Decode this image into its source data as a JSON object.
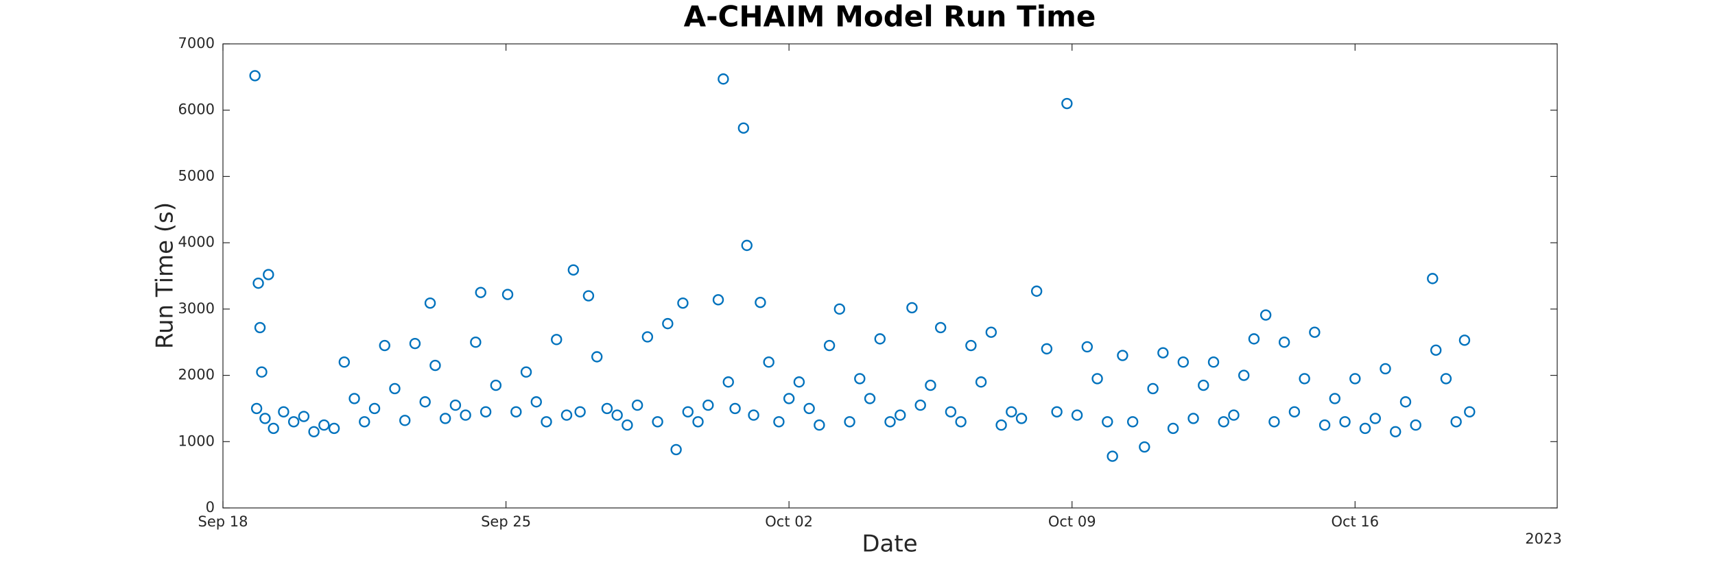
{
  "chart_data": {
    "type": "scatter",
    "title": "A-CHAIM Model Run Time",
    "x_label": "Date",
    "y_label": "Run Time (s)",
    "x_year_label": "2023",
    "color": "#0072bd",
    "xlim": [
      "2023-09-18",
      "2023-10-21"
    ],
    "xticks": [
      {
        "value": "2023-09-18",
        "label": "Sep 18"
      },
      {
        "value": "2023-09-25",
        "label": "Sep 25"
      },
      {
        "value": "2023-10-02",
        "label": "Oct 02"
      },
      {
        "value": "2023-10-09",
        "label": "Oct 09"
      },
      {
        "value": "2023-10-16",
        "label": "Oct 16"
      }
    ],
    "ylim": [
      0,
      7000
    ],
    "yticks": [
      0,
      1000,
      2000,
      3000,
      4000,
      5000,
      6000,
      7000
    ],
    "x": [
      "2023-09-18T19:00",
      "2023-09-18T20:00",
      "2023-09-18T21:00",
      "2023-09-18T22:00",
      "2023-09-18T23:00",
      "2023-09-19T01:00",
      "2023-09-19T03:00",
      "2023-09-19T06:00",
      "2023-09-19T12:00",
      "2023-09-19T18:00",
      "2023-09-20T00:00",
      "2023-09-20T06:00",
      "2023-09-20T12:00",
      "2023-09-20T18:00",
      "2023-09-21T00:00",
      "2023-09-21T06:00",
      "2023-09-21T12:00",
      "2023-09-21T18:00",
      "2023-09-22T00:00",
      "2023-09-22T06:00",
      "2023-09-22T12:00",
      "2023-09-22T18:00",
      "2023-09-23T00:00",
      "2023-09-23T03:00",
      "2023-09-23T06:00",
      "2023-09-23T12:00",
      "2023-09-23T18:00",
      "2023-09-24T00:00",
      "2023-09-24T06:00",
      "2023-09-24T09:00",
      "2023-09-24T12:00",
      "2023-09-24T18:00",
      "2023-09-25T01:00",
      "2023-09-25T06:00",
      "2023-09-25T12:00",
      "2023-09-25T18:00",
      "2023-09-26T00:00",
      "2023-09-26T06:00",
      "2023-09-26T12:00",
      "2023-09-26T16:00",
      "2023-09-26T20:00",
      "2023-09-27T01:00",
      "2023-09-27T06:00",
      "2023-09-27T12:00",
      "2023-09-27T18:00",
      "2023-09-28T00:00",
      "2023-09-28T06:00",
      "2023-09-28T12:00",
      "2023-09-28T18:00",
      "2023-09-29T00:00",
      "2023-09-29T05:00",
      "2023-09-29T09:00",
      "2023-09-29T12:00",
      "2023-09-29T18:00",
      "2023-09-30T00:00",
      "2023-09-30T06:00",
      "2023-09-30T09:00",
      "2023-09-30T12:00",
      "2023-09-30T16:00",
      "2023-09-30T21:00",
      "2023-09-30T23:00",
      "2023-10-01T03:00",
      "2023-10-01T07:00",
      "2023-10-01T12:00",
      "2023-10-01T18:00",
      "2023-10-02T00:00",
      "2023-10-02T06:00",
      "2023-10-02T12:00",
      "2023-10-02T18:00",
      "2023-10-03T00:00",
      "2023-10-03T06:00",
      "2023-10-03T12:00",
      "2023-10-03T18:00",
      "2023-10-04T00:00",
      "2023-10-04T06:00",
      "2023-10-04T12:00",
      "2023-10-04T18:00",
      "2023-10-05T01:00",
      "2023-10-05T06:00",
      "2023-10-05T12:00",
      "2023-10-05T18:00",
      "2023-10-06T00:00",
      "2023-10-06T06:00",
      "2023-10-06T12:00",
      "2023-10-06T18:00",
      "2023-10-07T00:00",
      "2023-10-07T06:00",
      "2023-10-07T12:00",
      "2023-10-07T18:00",
      "2023-10-08T03:00",
      "2023-10-08T09:00",
      "2023-10-08T15:00",
      "2023-10-08T21:00",
      "2023-10-09T03:00",
      "2023-10-09T09:00",
      "2023-10-09T15:00",
      "2023-10-09T21:00",
      "2023-10-10T00:00",
      "2023-10-10T06:00",
      "2023-10-10T12:00",
      "2023-10-10T19:00",
      "2023-10-11T00:00",
      "2023-10-11T06:00",
      "2023-10-11T12:00",
      "2023-10-11T18:00",
      "2023-10-12T00:00",
      "2023-10-12T06:00",
      "2023-10-12T12:00",
      "2023-10-12T18:00",
      "2023-10-13T00:00",
      "2023-10-13T06:00",
      "2023-10-13T12:00",
      "2023-10-13T19:00",
      "2023-10-14T00:00",
      "2023-10-14T06:00",
      "2023-10-14T12:00",
      "2023-10-14T18:00",
      "2023-10-15T00:00",
      "2023-10-15T06:00",
      "2023-10-15T12:00",
      "2023-10-15T18:00",
      "2023-10-16T00:00",
      "2023-10-16T06:00",
      "2023-10-16T12:00",
      "2023-10-16T18:00",
      "2023-10-17T00:00",
      "2023-10-17T06:00",
      "2023-10-17T12:00",
      "2023-10-17T22:00",
      "2023-10-18T00:00",
      "2023-10-18T06:00",
      "2023-10-18T12:00",
      "2023-10-18T17:00",
      "2023-10-18T20:00"
    ],
    "values": [
      6520,
      1500,
      3390,
      2720,
      2050,
      1350,
      3520,
      1200,
      1450,
      1300,
      1380,
      1150,
      1250,
      1200,
      2200,
      1650,
      1300,
      1500,
      2450,
      1800,
      1320,
      2480,
      1600,
      3090,
      2150,
      1350,
      1550,
      1400,
      2500,
      3250,
      1450,
      1850,
      3220,
      1450,
      2050,
      1600,
      1300,
      2540,
      1400,
      3590,
      1450,
      3200,
      2280,
      1500,
      1400,
      1250,
      1550,
      2580,
      1300,
      2780,
      880,
      3090,
      1450,
      1300,
      1550,
      3140,
      6470,
      1900,
      1500,
      5730,
      3960,
      1400,
      3100,
      2200,
      1300,
      1650,
      1900,
      1500,
      1250,
      2450,
      3000,
      1300,
      1950,
      1650,
      2550,
      1300,
      1400,
      3020,
      1550,
      1850,
      2720,
      1450,
      1300,
      2450,
      1900,
      2650,
      1250,
      1450,
      1350,
      3270,
      2400,
      1450,
      6100,
      1400,
      2430,
      1950,
      1300,
      780,
      2300,
      1300,
      920,
      1800,
      2340,
      1200,
      2200,
      1350,
      1850,
      2200,
      1300,
      1400,
      2000,
      2550,
      2910,
      1300,
      2500,
      1450,
      1950,
      2650,
      1250,
      1650,
      1300,
      1950,
      1200,
      1350,
      2100,
      1150,
      1600,
      1250,
      3460,
      2380,
      1950,
      1300,
      2530,
      1450
    ]
  }
}
